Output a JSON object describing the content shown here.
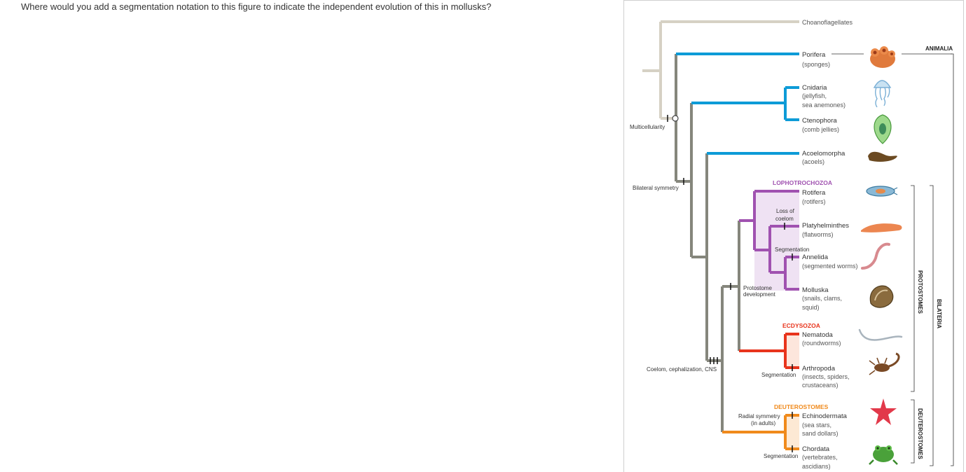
{
  "question": "Where would you add a segmentation notation to this figure to indicate the independent evolution of this in mollusks?",
  "colors": {
    "root": "#d6d1c4",
    "basal": "#0d9bd7",
    "trunk": "#85867c",
    "lophotrochozoa": "#a052b0",
    "ecdysozoa": "#e8341c",
    "deuterostomes": "#f08a1c",
    "lopho_shade": "#efe2f3",
    "ecdy_shade": "#fde6dc",
    "deut_shade": "#fde9d4"
  },
  "taxa": [
    {
      "name": "Choanoflagellates",
      "common": ""
    },
    {
      "name": "Porifera",
      "common": "(sponges)"
    },
    {
      "name": "Cnidaria",
      "common": "(jellyfish,",
      "common2": "sea anemones)"
    },
    {
      "name": "Ctenophora",
      "common": "(comb jellies)"
    },
    {
      "name": "Acoelomorpha",
      "common": "(acoels)"
    },
    {
      "name": "Rotifera",
      "common": "(rotifers)"
    },
    {
      "name": "Platyhelminthes",
      "common": "(flatworms)"
    },
    {
      "name": "Annelida",
      "common": "(segmented worms)"
    },
    {
      "name": "Molluska",
      "common": "(snails, clams,",
      "common2": "squid)"
    },
    {
      "name": "Nematoda",
      "common": "(roundworms)"
    },
    {
      "name": "Arthropoda",
      "common": "(insects, spiders,",
      "common2": "crustaceans)"
    },
    {
      "name": "Echinodermata",
      "common": "(sea stars,",
      "common2": "sand dollars)"
    },
    {
      "name": "Chordata",
      "common": "(vertebrates,",
      "common2": "ascidians)"
    }
  ],
  "groups": {
    "lophotrochozoa": "LOPHOTROCHOZOA",
    "ecdysozoa": "ECDYSOZOA",
    "deuterostomes": "DEUTEROSTOMES"
  },
  "brackets": {
    "animalia": "ANIMALIA",
    "protostomes": "PROTOSTOMES",
    "deuterostomes": "DEUTEROSTOMES",
    "bilateria": "BILATERIA"
  },
  "traits": {
    "multicellularity": "Multicellularity",
    "bilateral_symmetry": "Bilateral symmetry",
    "coelom": "Coelom, cephalization, CNS",
    "protostome_dev_1": "Protostome",
    "protostome_dev_2": "development",
    "loss_of_coelom_1": "Loss of",
    "loss_of_coelom_2": "coelom",
    "segmentation_annelida": "Segmentation",
    "segmentation_arthropoda": "Segmentation",
    "radial_1": "Radial symmetry",
    "radial_2": "(in adults)",
    "segmentation_chordata": "Segmentation"
  }
}
